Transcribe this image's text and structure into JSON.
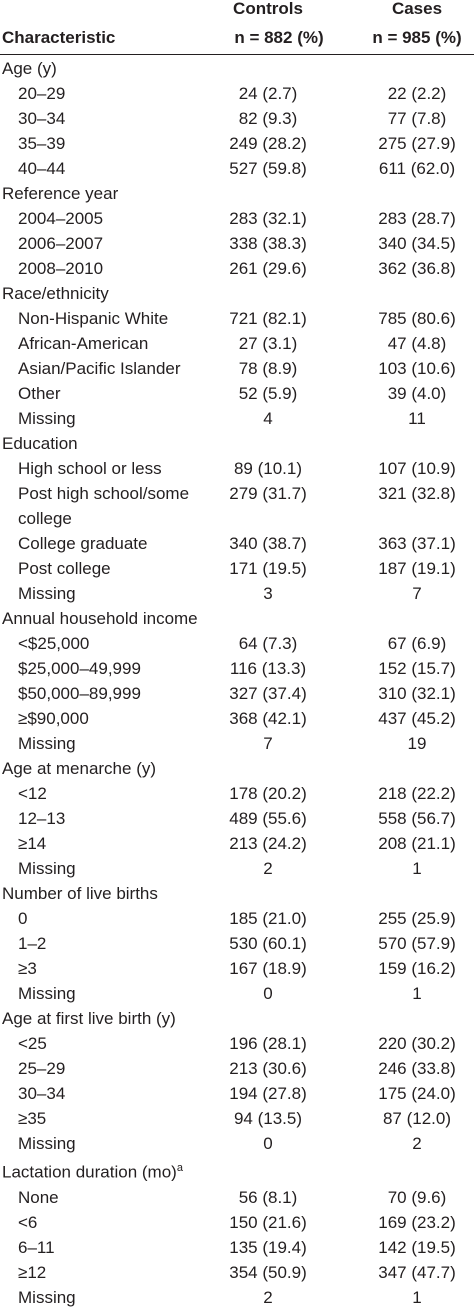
{
  "header": {
    "controls": "Controls",
    "cases": "Cases",
    "characteristic": "Characteristic",
    "n_controls": "n = 882 (%)",
    "n_cases": "n = 985 (%)"
  },
  "sections": [
    {
      "title": "Age (y)",
      "rows": [
        {
          "label": "20–29",
          "controls": "24 (2.7)",
          "cases": "22 (2.2)"
        },
        {
          "label": "30–34",
          "controls": "82 (9.3)",
          "cases": "77 (7.8)"
        },
        {
          "label": "35–39",
          "controls": "249 (28.2)",
          "cases": "275 (27.9)"
        },
        {
          "label": "40–44",
          "controls": "527 (59.8)",
          "cases": "611 (62.0)"
        }
      ]
    },
    {
      "title": "Reference year",
      "rows": [
        {
          "label": "2004–2005",
          "controls": "283 (32.1)",
          "cases": "283 (28.7)"
        },
        {
          "label": "2006–2007",
          "controls": "338 (38.3)",
          "cases": "340 (34.5)"
        },
        {
          "label": "2008–2010",
          "controls": "261 (29.6)",
          "cases": "362 (36.8)"
        }
      ]
    },
    {
      "title": "Race/ethnicity",
      "rows": [
        {
          "label": "Non-Hispanic White",
          "controls": "721 (82.1)",
          "cases": "785 (80.6)"
        },
        {
          "label": "African-American",
          "controls": "27 (3.1)",
          "cases": "47 (4.8)"
        },
        {
          "label": "Asian/Pacific Islander",
          "controls": "78 (8.9)",
          "cases": "103 (10.6)"
        },
        {
          "label": "Other",
          "controls": "52 (5.9)",
          "cases": "39 (4.0)"
        },
        {
          "label": "Missing",
          "controls": "4",
          "cases": "11"
        }
      ]
    },
    {
      "title": "Education",
      "rows": [
        {
          "label": "High school or less",
          "controls": "89 (10.1)",
          "cases": "107 (10.9)"
        },
        {
          "label": "Post high school/some college",
          "controls": "279 (31.7)",
          "cases": "321 (32.8)"
        },
        {
          "label": "College graduate",
          "controls": "340 (38.7)",
          "cases": "363 (37.1)"
        },
        {
          "label": "Post college",
          "controls": "171 (19.5)",
          "cases": "187 (19.1)"
        },
        {
          "label": "Missing",
          "controls": "3",
          "cases": "7"
        }
      ]
    },
    {
      "title": "Annual household income",
      "rows": [
        {
          "label": "<$25,000",
          "controls": "64 (7.3)",
          "cases": "67 (6.9)"
        },
        {
          "label": "$25,000–49,999",
          "controls": "116 (13.3)",
          "cases": "152 (15.7)"
        },
        {
          "label": "$50,000–89,999",
          "controls": "327 (37.4)",
          "cases": "310 (32.1)"
        },
        {
          "label": "≥$90,000",
          "controls": "368 (42.1)",
          "cases": "437 (45.2)"
        },
        {
          "label": "Missing",
          "controls": "7",
          "cases": "19"
        }
      ]
    },
    {
      "title": "Age at menarche (y)",
      "rows": [
        {
          "label": "<12",
          "controls": "178 (20.2)",
          "cases": "218 (22.2)"
        },
        {
          "label": "12–13",
          "controls": "489 (55.6)",
          "cases": "558 (56.7)"
        },
        {
          "label": "≥14",
          "controls": "213 (24.2)",
          "cases": "208 (21.1)"
        },
        {
          "label": "Missing",
          "controls": "2",
          "cases": "1"
        }
      ]
    },
    {
      "title": "Number of live births",
      "rows": [
        {
          "label": "0",
          "controls": "185 (21.0)",
          "cases": "255 (25.9)"
        },
        {
          "label": "1–2",
          "controls": "530 (60.1)",
          "cases": "570 (57.9)"
        },
        {
          "label": "≥3",
          "controls": "167 (18.9)",
          "cases": "159 (16.2)"
        },
        {
          "label": "Missing",
          "controls": "0",
          "cases": "1"
        }
      ]
    },
    {
      "title": "Age at first live birth (y)",
      "rows": [
        {
          "label": "<25",
          "controls": "196 (28.1)",
          "cases": "220 (30.2)"
        },
        {
          "label": "25–29",
          "controls": "213 (30.6)",
          "cases": "246 (33.8)"
        },
        {
          "label": "30–34",
          "controls": "194 (27.8)",
          "cases": "175 (24.0)"
        },
        {
          "label": "≥35",
          "controls": "94 (13.5)",
          "cases": "87 (12.0)"
        },
        {
          "label": "Missing",
          "controls": "0",
          "cases": "2"
        }
      ]
    },
    {
      "title": "Lactation duration (mo)",
      "title_sup": "a",
      "rows": [
        {
          "label": "None",
          "controls": "56 (8.1)",
          "cases": "70 (9.6)"
        },
        {
          "label": "<6",
          "controls": "150 (21.6)",
          "cases": "169 (23.2)"
        },
        {
          "label": "6–11",
          "controls": "135 (19.4)",
          "cases": "142 (19.5)"
        },
        {
          "label": "≥12",
          "controls": "354 (50.9)",
          "cases": "347 (47.7)"
        },
        {
          "label": "Missing",
          "controls": "2",
          "cases": "1"
        }
      ]
    }
  ]
}
